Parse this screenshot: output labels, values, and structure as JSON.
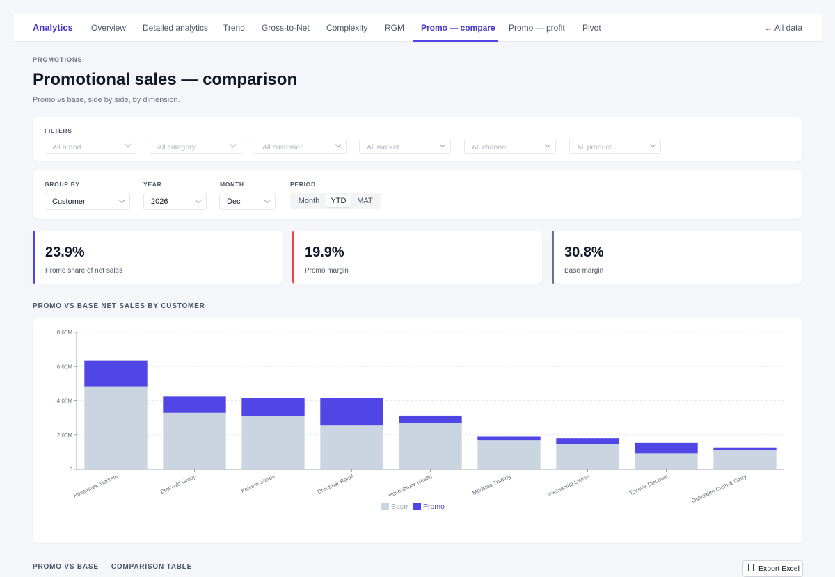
{
  "nav": {
    "brand": "Analytics",
    "tabs": [
      {
        "label": "Overview"
      },
      {
        "label": "Detailed analytics"
      },
      {
        "label": "Trend"
      },
      {
        "label": "Gross-to-Net"
      },
      {
        "label": "Complexity"
      },
      {
        "label": "RGM"
      },
      {
        "label": "Promo — compare"
      },
      {
        "label": "Promo — profit"
      },
      {
        "label": "Pivot"
      }
    ],
    "active_tab": "Promo — compare",
    "back_label": "All data",
    "back_icon": "arrow-left-icon"
  },
  "header": {
    "eyebrow": "PROMOTIONS",
    "title": "Promotional sales — comparison",
    "subtitle": "Promo vs base, side by side, by dimension."
  },
  "filters": {
    "label": "FILTERS",
    "items": [
      {
        "placeholder": "All brand"
      },
      {
        "placeholder": "All category"
      },
      {
        "placeholder": "All customer"
      },
      {
        "placeholder": "All market"
      },
      {
        "placeholder": "All channel"
      },
      {
        "placeholder": "All product"
      }
    ]
  },
  "controls": {
    "group_by": {
      "label": "GROUP BY",
      "value": "Customer"
    },
    "year": {
      "label": "YEAR",
      "value": "2026"
    },
    "month": {
      "label": "MONTH",
      "value": "Dec"
    },
    "period": {
      "label": "PERIOD",
      "options": [
        "Month",
        "YTD",
        "MAT"
      ],
      "selected": "YTD"
    }
  },
  "kpis": [
    {
      "value": "23.9%",
      "label": "Promo share of net sales",
      "color": "#4f46e5"
    },
    {
      "value": "19.9%",
      "label": "Promo margin",
      "color": "#ef4444"
    },
    {
      "value": "30.8%",
      "label": "Base margin",
      "color": "#64748b"
    }
  ],
  "chart_section": {
    "title": "PROMO VS BASE NET SALES BY CUSTOMER"
  },
  "chart_data": {
    "type": "bar",
    "stacked": true,
    "categories": [
      "Hovelmark Markets",
      "Brakvold Group",
      "Kelvarn Stores",
      "Drentmar Retail",
      "Havenbruck Health",
      "Merlstad Trading",
      "Wessendal Online",
      "Tolmvik Discount",
      "Ostvelden Cash & Carry"
    ],
    "series": [
      {
        "name": "Base",
        "color": "#cbd5e1",
        "values": [
          4.85,
          3.3,
          3.12,
          2.55,
          2.68,
          1.7,
          1.47,
          0.92,
          1.1
        ]
      },
      {
        "name": "Promo",
        "color": "#4f46e5",
        "values": [
          1.5,
          0.95,
          1.03,
          1.6,
          0.45,
          0.23,
          0.35,
          0.63,
          0.17
        ]
      }
    ],
    "ylim": [
      0,
      8
    ],
    "yticks": [
      "0",
      "2.00M",
      "4.00M",
      "6.00M",
      "8.00M"
    ],
    "grid": true,
    "legend": "bottom"
  },
  "table_section": {
    "title": "PROMO VS BASE — COMPARISON TABLE",
    "export_label": "Export Excel",
    "export_icon": "file-excel-icon"
  }
}
